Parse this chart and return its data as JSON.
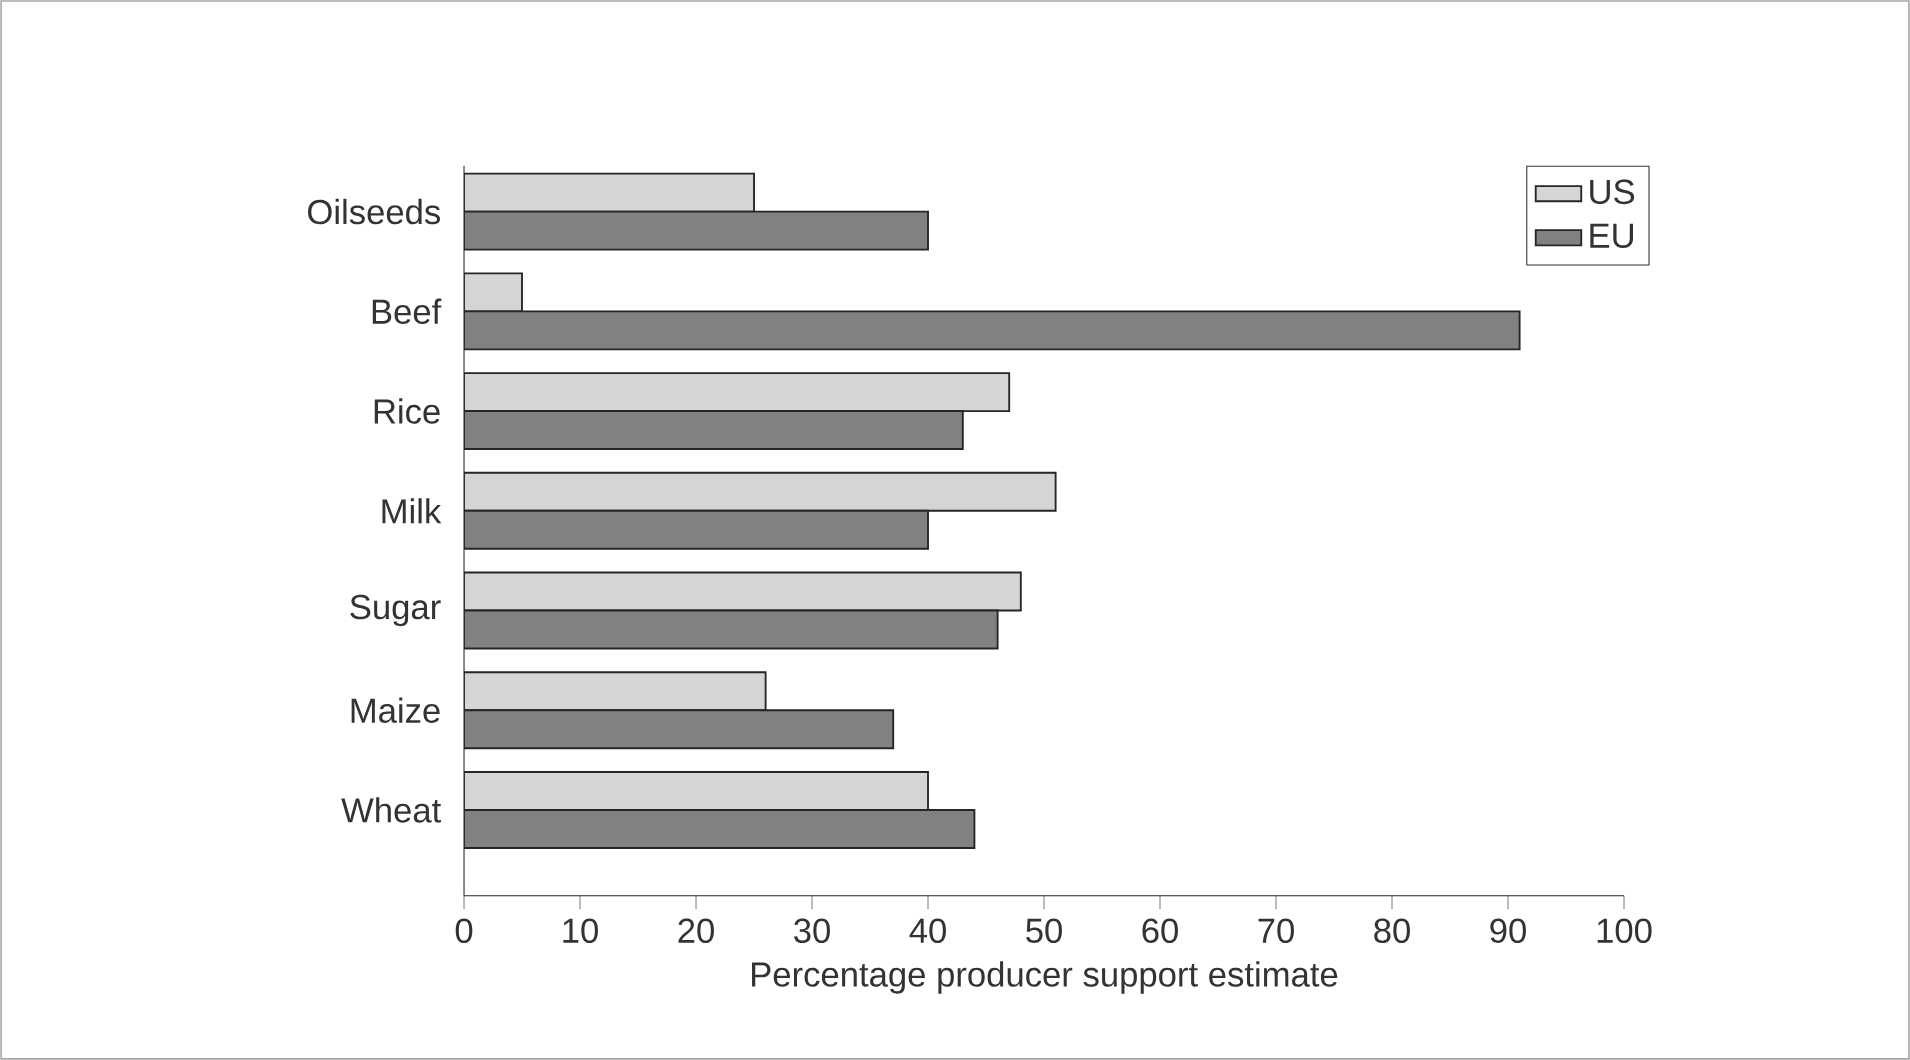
{
  "chart_data": {
    "type": "bar",
    "orientation": "horizontal",
    "xlabel": "Percentage producer support estimate",
    "categories": [
      "Oilseeds",
      "Beef",
      "Rice",
      "Milk",
      "Sugar",
      "Maize",
      "Wheat"
    ],
    "series": [
      {
        "name": "US",
        "color": "#d4d5d6",
        "values": [
          25,
          5,
          47,
          51,
          48,
          26,
          40
        ]
      },
      {
        "name": "EU",
        "color": "#808183",
        "values": [
          40,
          91,
          43,
          40,
          46,
          37,
          44
        ]
      }
    ],
    "xlim": [
      0,
      100
    ],
    "xticks": [
      0,
      10,
      20,
      30,
      40,
      50,
      60,
      70,
      80,
      90,
      100
    ],
    "grid": false,
    "legend": "top right"
  }
}
